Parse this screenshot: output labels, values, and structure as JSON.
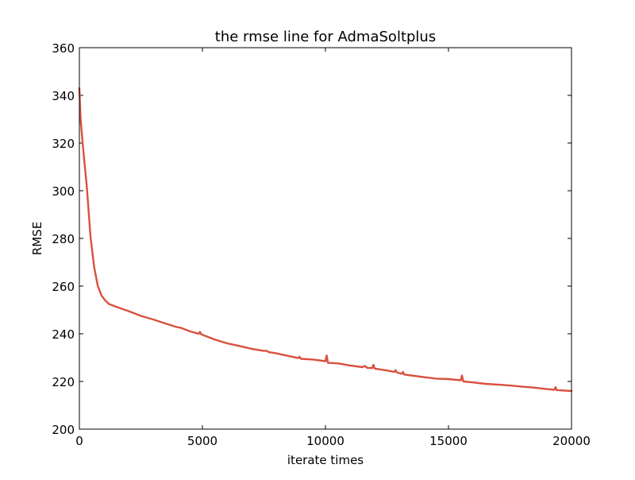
{
  "chart_data": {
    "type": "line",
    "title": "the rmse line for AdmaSoltplus",
    "xlabel": "iterate times",
    "ylabel": "RMSE",
    "xlim": [
      0,
      20000
    ],
    "ylim": [
      200,
      360
    ],
    "x_ticks": [
      "0",
      "5000",
      "10000",
      "15000",
      "20000"
    ],
    "y_ticks": [
      "200",
      "220",
      "240",
      "260",
      "280",
      "300",
      "320",
      "340",
      "360"
    ],
    "grid": false,
    "legend": "none",
    "series": [
      {
        "color": "#d9503f",
        "x": [
          0,
          50,
          150,
          300,
          450,
          600,
          750,
          900,
          1050,
          1200,
          1500,
          2000,
          2500,
          3000,
          3500,
          3900,
          4000,
          4100,
          4500,
          4850,
          4900,
          4950,
          5000,
          5500,
          6000,
          6500,
          7000,
          7500,
          7600,
          7700,
          8000,
          8500,
          8900,
          8950,
          9000,
          9500,
          10000,
          10050,
          10100,
          10500,
          11000,
          11500,
          11600,
          11700,
          11900,
          11950,
          12000,
          12500,
          12800,
          12850,
          12900,
          13100,
          13150,
          13200,
          13500,
          14000,
          14500,
          15000,
          15500,
          15550,
          15600,
          16000,
          16500,
          17000,
          17500,
          18000,
          18500,
          19000,
          19300,
          19350,
          19400,
          19500,
          20000
        ],
        "y": [
          343,
          330,
          318,
          302,
          281,
          268,
          260,
          256,
          254,
          252.5,
          251.3,
          249.5,
          247.5,
          246,
          244.3,
          243,
          242.7,
          242.6,
          241,
          240,
          240.8,
          239.8,
          239.6,
          237.6,
          236,
          234.9,
          233.7,
          232.8,
          232.9,
          232.3,
          231.8,
          230.7,
          229.8,
          230.4,
          229.5,
          229.2,
          228.5,
          230.9,
          227.8,
          227.6,
          226.7,
          226,
          226.5,
          225.7,
          225.6,
          227,
          225.4,
          224.6,
          224,
          224.8,
          223.8,
          223.2,
          224,
          222.9,
          222.5,
          221.8,
          221.2,
          221,
          220.5,
          222.5,
          220,
          219.6,
          219,
          218.7,
          218.3,
          217.8,
          217.4,
          216.8,
          216.5,
          217.6,
          216.4,
          216.3,
          216
        ]
      }
    ]
  }
}
